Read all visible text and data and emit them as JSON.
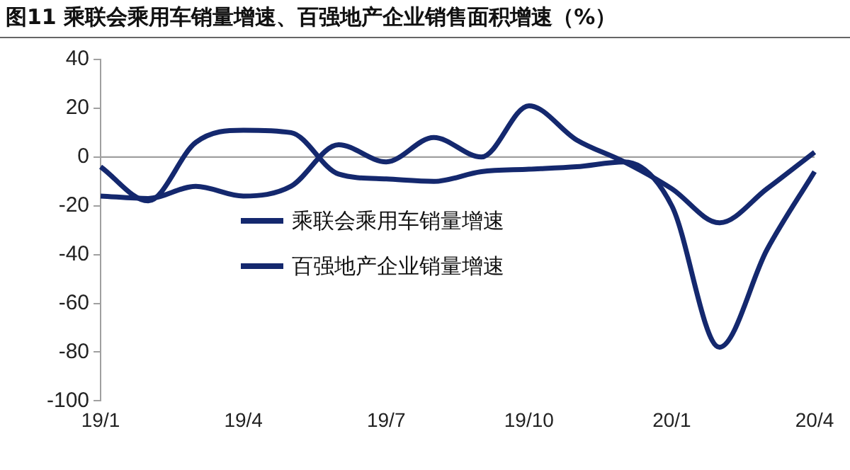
{
  "chart_data": {
    "type": "line",
    "title": "图11 乘联会乘用车销量增速、百强地产企业销售面积增速（%）",
    "categories": [
      "19/1",
      null,
      null,
      "19/4",
      null,
      null,
      "19/7",
      null,
      null,
      "19/10",
      null,
      null,
      "20/1",
      null,
      null,
      "20/4"
    ],
    "series": [
      {
        "name": "乘联会乘用车销量增速",
        "color": "#14286e",
        "values": [
          -4,
          -18,
          6,
          11,
          10,
          -7,
          -9,
          -10,
          -6,
          -5,
          -4,
          -2,
          -20,
          -78,
          -38,
          -6
        ]
      },
      {
        "name": "百强地产企业销量增速",
        "color": "#14286e",
        "values": [
          -16,
          -17,
          -12,
          -16,
          -12,
          5,
          -2,
          8,
          0,
          21,
          7,
          -2,
          -13,
          -27,
          -13,
          2
        ]
      }
    ],
    "ylim": [
      -100,
      40
    ],
    "yticks": [
      -100,
      -80,
      -60,
      -40,
      -20,
      0,
      20,
      40
    ],
    "grid": false,
    "ref_lines": [
      {
        "axis": "y",
        "value": 0,
        "color": "#a0a0a0"
      }
    ],
    "legend": "center",
    "marker": "none",
    "line_style": "solid"
  }
}
